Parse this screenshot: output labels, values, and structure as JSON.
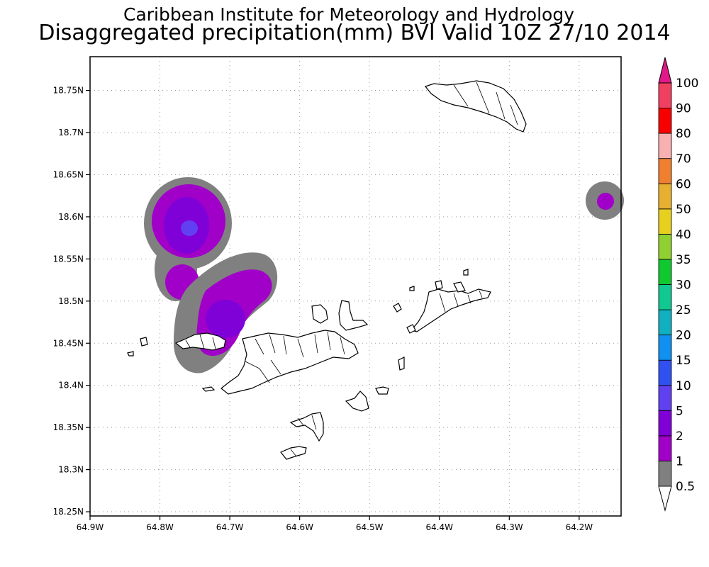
{
  "header": {
    "title": "Caribbean Institute for Meteorology and Hydrology",
    "subtitle": "Disaggregated precipitation(mm) BVI Valid 10Z 27/10 2014"
  },
  "axes": {
    "lon_ticks": [
      "64.9W",
      "64.8W",
      "64.7W",
      "64.6W",
      "64.5W",
      "64.4W",
      "64.3W",
      "64.2W"
    ],
    "lat_ticks": [
      "18.75N",
      "18.7N",
      "18.65N",
      "18.6N",
      "18.55N",
      "18.5N",
      "18.45N",
      "18.4N",
      "18.35N",
      "18.3N",
      "18.25N"
    ],
    "lon_values": [
      -64.9,
      -64.8,
      -64.7,
      -64.6,
      -64.5,
      -64.4,
      -64.3,
      -64.2
    ],
    "lat_values": [
      18.75,
      18.7,
      18.65,
      18.6,
      18.55,
      18.5,
      18.45,
      18.4,
      18.35,
      18.3,
      18.25
    ],
    "lon_range": [
      -64.9,
      -64.14
    ],
    "lat_range": [
      18.245,
      18.79
    ],
    "grid": "dotted"
  },
  "colorbar": {
    "labels": [
      "0.5",
      "1",
      "2",
      "5",
      "10",
      "15",
      "20",
      "25",
      "30",
      "35",
      "40",
      "50",
      "60",
      "70",
      "80",
      "90",
      "100"
    ],
    "colors": [
      "#ffffff",
      "#808080",
      "#a000c8",
      "#8000d8",
      "#6040f0",
      "#3050f0",
      "#1090f0",
      "#10b0c0",
      "#10c890",
      "#10c830",
      "#90d030",
      "#e8d020",
      "#e8b030",
      "#f08030",
      "#f8b0b0",
      "#f80000",
      "#f04060",
      "#e01888"
    ],
    "orientation": "vertical",
    "placement": "right"
  },
  "colors": {
    "gray": "#808080",
    "purple": "#a000c8",
    "violet": "#8000d8",
    "blue": "#6040f0",
    "land": "#ffffff",
    "coast": "#000000"
  }
}
